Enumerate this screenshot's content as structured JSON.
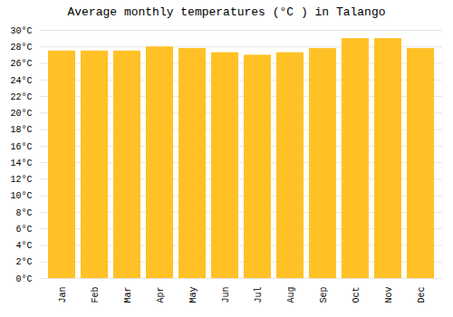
{
  "chart_data": {
    "type": "bar",
    "title": "Average monthly temperatures (°C ) in Talango",
    "categories": [
      "Jan",
      "Feb",
      "Mar",
      "Apr",
      "May",
      "Jun",
      "Jul",
      "Aug",
      "Sep",
      "Oct",
      "Nov",
      "Dec"
    ],
    "values": [
      27.5,
      27.5,
      27.5,
      28.0,
      27.8,
      27.3,
      27.0,
      27.3,
      27.8,
      29.0,
      29.0,
      27.8
    ],
    "color": "#FFC125",
    "ylim": [
      0,
      30
    ],
    "yticks": [
      {
        "value": 0,
        "label": "0°C"
      },
      {
        "value": 2,
        "label": "2°C"
      },
      {
        "value": 4,
        "label": "4°C"
      },
      {
        "value": 6,
        "label": "6°C"
      },
      {
        "value": 8,
        "label": "8°C"
      },
      {
        "value": 10,
        "label": "10°C"
      },
      {
        "value": 12,
        "label": "12°C"
      },
      {
        "value": 14,
        "label": "14°C"
      },
      {
        "value": 16,
        "label": "16°C"
      },
      {
        "value": 18,
        "label": "18°C"
      },
      {
        "value": 20,
        "label": "20°C"
      },
      {
        "value": 22,
        "label": "22°C"
      },
      {
        "value": 24,
        "label": "24°C"
      },
      {
        "value": 26,
        "label": "26°C"
      },
      {
        "value": 28,
        "label": "28°C"
      },
      {
        "value": 30,
        "label": "30°C"
      }
    ],
    "grid": true
  }
}
